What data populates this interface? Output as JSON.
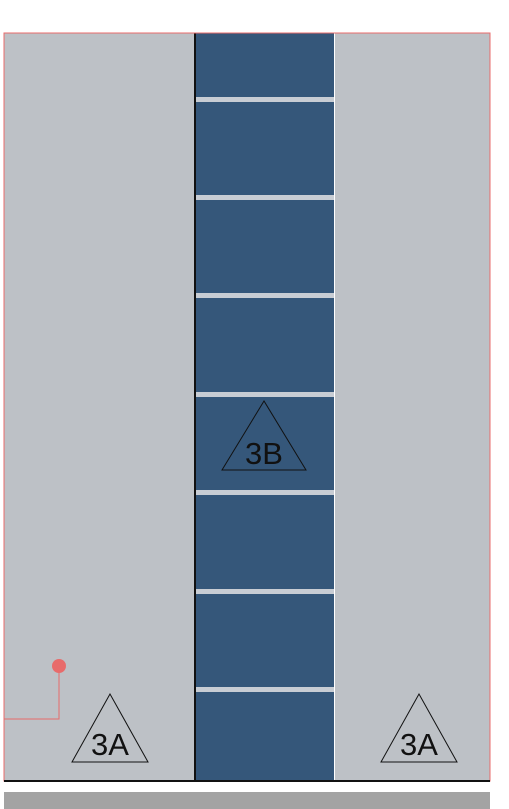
{
  "colors": {
    "zone": "#bdc1c6",
    "band": "#35577a",
    "rung": "#c8cdd4",
    "floor": "#a3a3a3",
    "outline": "#e86b6b",
    "line": "#111111"
  },
  "markers": {
    "left": {
      "label": "3A"
    },
    "center": {
      "label": "3B"
    },
    "right": {
      "label": "3A"
    }
  }
}
